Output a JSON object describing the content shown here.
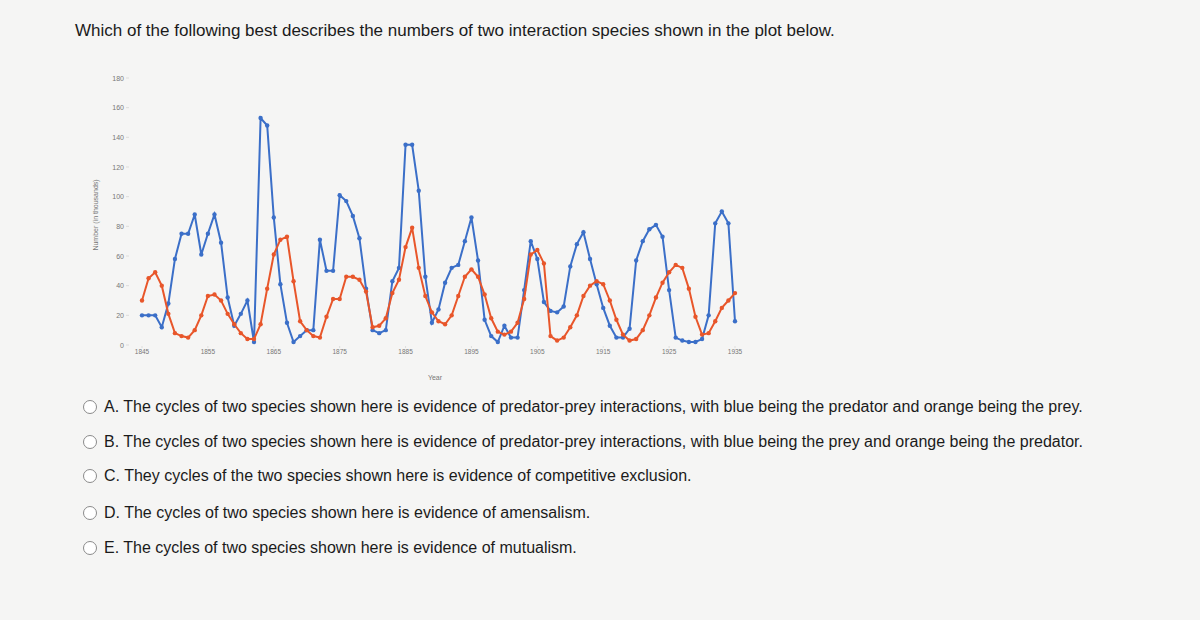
{
  "question": "Which of the following best describes the numbers of two interaction species shown in the plot below.",
  "chart_data": {
    "type": "line",
    "x_label": "Year",
    "y_label": "Number (in thousands)",
    "x": [
      1845,
      1846,
      1847,
      1848,
      1849,
      1850,
      1851,
      1852,
      1853,
      1854,
      1855,
      1856,
      1857,
      1858,
      1859,
      1860,
      1861,
      1862,
      1863,
      1864,
      1865,
      1866,
      1867,
      1868,
      1869,
      1870,
      1871,
      1872,
      1873,
      1874,
      1875,
      1876,
      1877,
      1878,
      1879,
      1880,
      1881,
      1882,
      1883,
      1884,
      1885,
      1886,
      1887,
      1888,
      1889,
      1890,
      1891,
      1892,
      1893,
      1894,
      1895,
      1896,
      1897,
      1898,
      1899,
      1900,
      1901,
      1902,
      1903,
      1904,
      1905,
      1906,
      1907,
      1908,
      1909,
      1910,
      1911,
      1912,
      1913,
      1914,
      1915,
      1916,
      1917,
      1918,
      1919,
      1920,
      1921,
      1922,
      1923,
      1924,
      1925,
      1926,
      1927,
      1928,
      1929,
      1930,
      1931,
      1932,
      1933,
      1934,
      1935
    ],
    "series": [
      {
        "color": "#3b6fc8",
        "marker": "circle",
        "line_style": "solid",
        "values": [
          20,
          20,
          20,
          12,
          28,
          58,
          75,
          75,
          88,
          61,
          75,
          88,
          69,
          32,
          13,
          21,
          30,
          2,
          153,
          148,
          86,
          41,
          15,
          2,
          6,
          10,
          10,
          71,
          50,
          50,
          101,
          97,
          87,
          72,
          38,
          10,
          8,
          10,
          43,
          52,
          135,
          135,
          104,
          46,
          15,
          24,
          42,
          52,
          54,
          70,
          86,
          57,
          17,
          6,
          2,
          13,
          5,
          5,
          37,
          70,
          58,
          29,
          23,
          22,
          26,
          53,
          68,
          76,
          58,
          41,
          25,
          13,
          5,
          5,
          11,
          57,
          70,
          78,
          81,
          73,
          37,
          5,
          3,
          2,
          2,
          4,
          20,
          82,
          90,
          82,
          16
        ]
      },
      {
        "color": "#e8562a",
        "marker": "circle",
        "line_style": "solid",
        "values": [
          30,
          45,
          49,
          40,
          21,
          8,
          6,
          5,
          10,
          20,
          33,
          34,
          30,
          21,
          14,
          8,
          4,
          4,
          14,
          38,
          61,
          71,
          73,
          43,
          16,
          10,
          6,
          5,
          19,
          31,
          31,
          46,
          46,
          44,
          36,
          12,
          13,
          18,
          35,
          44,
          66,
          79,
          52,
          33,
          22,
          16,
          14,
          20,
          33,
          46,
          51,
          46,
          34,
          18,
          9,
          7,
          9,
          15,
          31,
          61,
          64,
          55,
          6,
          3,
          5,
          12,
          20,
          33,
          40,
          43,
          41,
          30,
          17,
          7,
          3,
          4,
          10,
          20,
          32,
          42,
          49,
          54,
          52,
          38,
          19,
          7,
          8,
          16,
          25,
          30,
          35
        ]
      }
    ],
    "xlim": [
      1845,
      1935
    ],
    "xticks": [
      1845,
      1855,
      1865,
      1875,
      1885,
      1895,
      1905,
      1915,
      1925,
      1935
    ],
    "ylim": [
      0,
      180
    ],
    "yticks": [
      0,
      20,
      40,
      60,
      80,
      100,
      120,
      140,
      160,
      180
    ],
    "grid": false
  },
  "options": [
    "A. The cycles of two species shown here is evidence of predator-prey interactions, with blue being the predator and orange being the prey.",
    "B. The cycles of two species shown here is evidence of predator-prey interactions, with blue being the prey and orange being the predator.",
    "C. They cycles of the two species shown here is evidence of competitive exclusion.",
    "D. The cycles of two species shown here is evidence of amensalism.",
    "E. The cycles of two species shown here is evidence of mutualism."
  ]
}
